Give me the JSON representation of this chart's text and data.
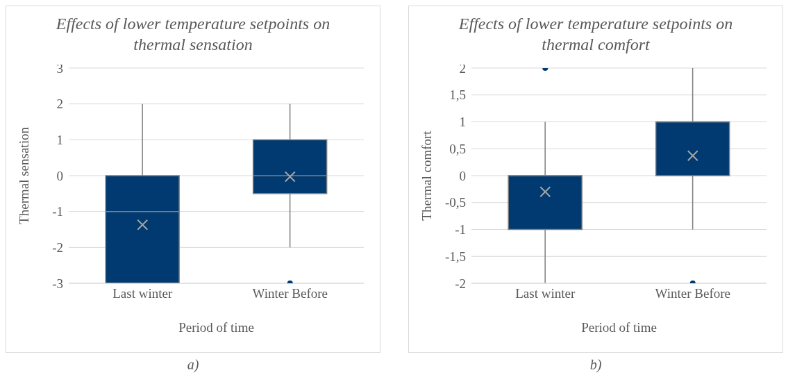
{
  "chart_data": [
    {
      "type": "box",
      "title": "Effects of lower temperature setpoints on thermal sensation",
      "xlabel": "Period of time",
      "ylabel": "Thermal sensation",
      "categories": [
        "Last winter",
        "Winter Before"
      ],
      "color": "#003a70",
      "boxes": [
        {
          "low": -3,
          "q1": -3,
          "median": -1,
          "q3": 0,
          "high": 2,
          "mean": -1.37
        },
        {
          "low": -2,
          "q1": -0.5,
          "median": 0,
          "q3": 1,
          "high": 2,
          "mean": -0.03,
          "outliers": [
            -3
          ]
        }
      ],
      "ylim": [
        -3,
        3
      ],
      "yticks": [
        -3,
        -2,
        -1,
        0,
        1,
        2,
        3
      ],
      "grid": "y",
      "annotations": [
        "a)"
      ]
    },
    {
      "type": "box",
      "title": "Effects of lower temperature setpoints on thermal comfort",
      "xlabel": "Period of time",
      "ylabel": "Thermal comfort",
      "categories": [
        "Last winter",
        "Winter Before"
      ],
      "color": "#003a70",
      "boxes": [
        {
          "low": -2,
          "q1": -1,
          "median": 0,
          "q3": 0,
          "high": 1,
          "mean": -0.3,
          "outliers": [
            2
          ]
        },
        {
          "low": -1,
          "q1": 0,
          "median": 1,
          "q3": 1,
          "high": 2,
          "mean": 0.37,
          "outliers": [
            -2
          ]
        }
      ],
      "ylim": [
        -2,
        2
      ],
      "yticks": [
        {
          "value": -2,
          "label": "-2"
        },
        {
          "value": -1.5,
          "label": "-1,5"
        },
        {
          "value": -1,
          "label": "-1"
        },
        {
          "value": -0.5,
          "label": "-0,5"
        },
        {
          "value": 0,
          "label": "0"
        },
        {
          "value": 0.5,
          "label": "0,5"
        },
        {
          "value": 1,
          "label": "1"
        },
        {
          "value": 1.5,
          "label": "1,5"
        },
        {
          "value": 2,
          "label": "2"
        }
      ],
      "grid": "y",
      "annotations": [
        "b)"
      ]
    }
  ]
}
